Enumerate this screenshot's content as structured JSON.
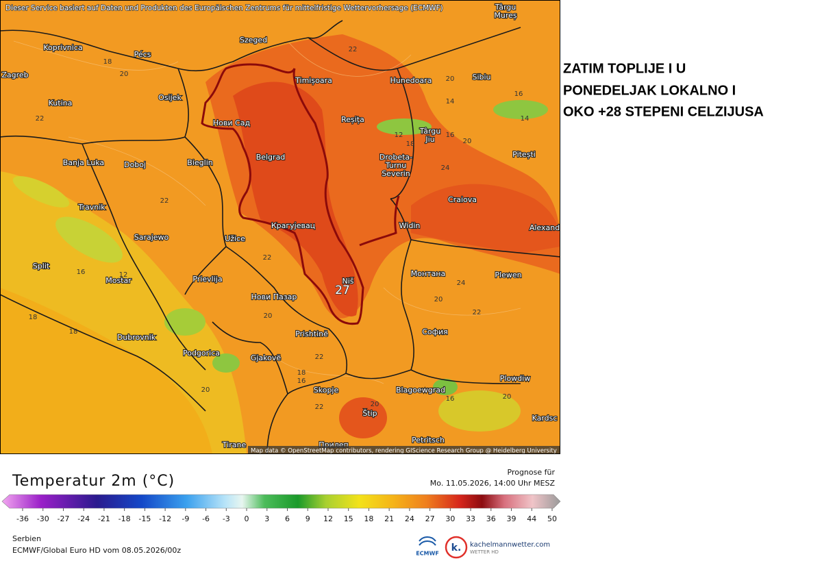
{
  "header": {
    "notice": "Dieser Service basiert auf Daten und Produkten des Europäischen Zentrums für mittelfristige Wettervorhersage (ECMWF)"
  },
  "side_text": [
    "ZATIM TOPLIJE I U",
    "PONEDELJAK LOKALNO I",
    "OKO +28 STEPENI CELZIJUSA"
  ],
  "map": {
    "cities": [
      "Târgu",
      "Mureș",
      "Szeged",
      "Koprivnica",
      "Pécs",
      "Zagreb",
      "Osijek",
      "Timișoara",
      "Hunedoara",
      "Sibiu",
      "Kutina",
      "Нови Сад",
      "Reșița",
      "Târgu",
      "Jiu",
      "Banja Luka",
      "Doboj",
      "Bieglin",
      "Belgrad",
      "Drobeta-",
      "Turnu",
      "Severin",
      "Pitești",
      "Travnik",
      "Craiova",
      "Sarajewo",
      "Крагујевац",
      "Užice",
      "Widin",
      "Alexand",
      "Split",
      "Mostar",
      "Prievlija",
      "Niš",
      "Монтана",
      "Plewen",
      "Нови Пазар",
      "София",
      "Dubrovnik",
      "Prishtinë",
      "Podgorica",
      "Gjakovë",
      "Plowdiw",
      "Skopje",
      "Blagoewgrad",
      "Štip",
      "Kardsc",
      "Petritsch",
      "Tirane",
      "Прилеп"
    ],
    "values": [
      22,
      18,
      20,
      20,
      16,
      14,
      14,
      22,
      12,
      18,
      16,
      20,
      24,
      22,
      22,
      16,
      12,
      24,
      27,
      20,
      22,
      18,
      20,
      18,
      22,
      18,
      16,
      20,
      16,
      20,
      22,
      20
    ],
    "attribution": "Map data © OpenStreetMap contributors, rendering GIScience Research Group @ Heidelberg University"
  },
  "legend": {
    "title": "Temperatur 2m (°C)",
    "forecast_label": "Prognose für",
    "forecast_time": "Mo. 11.05.2026, 14:00 Uhr MESZ",
    "ticks": [
      -36,
      -30,
      -27,
      -24,
      -21,
      -18,
      -15,
      -12,
      -9,
      -6,
      -3,
      0,
      3,
      6,
      9,
      12,
      15,
      18,
      21,
      24,
      27,
      30,
      33,
      36,
      39,
      44,
      50
    ]
  },
  "footer": {
    "region": "Serbien",
    "model": "ECMWF/Global Euro HD vom 08.05.2026/00z",
    "logo_ecmwf": "ECMWF",
    "logo_k": "k.",
    "logo_site": "kachelmannwetter.com",
    "logo_sub": "WETTER HD"
  }
}
